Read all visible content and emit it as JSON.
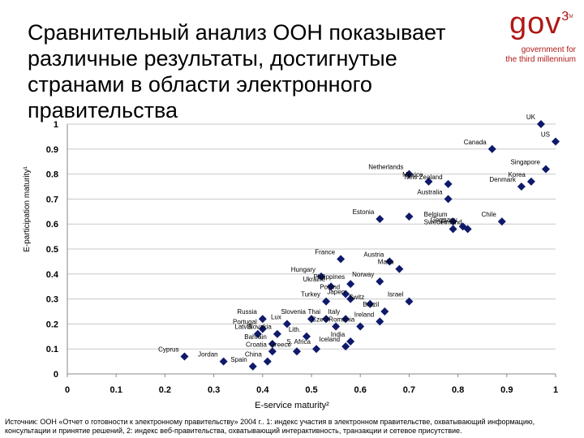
{
  "title": "Сравнительный анализ ООН показывает различные результаты, достигнутые странами в области электронного правительства",
  "logo": {
    "brand": "gov",
    "superscript": "3",
    "tm": "TM",
    "tagline_line1": "government for",
    "tagline_line2": "the third millennium",
    "color": "#b01818"
  },
  "footnote": "Источник: ООН «Отчет о готовности к электронному правительству» 2004 г.. 1: индекс участия в электронном правительстве, охватывающий информацию, консультации и принятие решений, 2: индекс веб-правительства, охватывающий интерактивность, транзакции и сетевое присутствие.",
  "chart_data": {
    "type": "scatter",
    "title": "",
    "xlabel": "E-service maturity²",
    "ylabel": "E-participation maturity¹",
    "xlim": [
      0,
      1
    ],
    "ylim": [
      0,
      1
    ],
    "xticks": [
      "0",
      "0.1",
      "0.2",
      "0.3",
      "0.4",
      "0.5",
      "0.6",
      "0.7",
      "0.8",
      "0.9",
      "1"
    ],
    "yticks": [
      "0",
      "0.1",
      "0.2",
      "0.3",
      "0.4",
      "0.5",
      "0.6",
      "0.7",
      "0.8",
      "0.9",
      "1"
    ],
    "grid": "horizontal",
    "marker_color": "#0f1a6b",
    "points": [
      {
        "label": "UK",
        "x": 0.97,
        "y": 1.0
      },
      {
        "label": "Canada",
        "x": 0.87,
        "y": 0.9
      },
      {
        "label": "US",
        "x": 1.0,
        "y": 0.93
      },
      {
        "label": "Netherlands",
        "x": 0.7,
        "y": 0.8
      },
      {
        "label": "Mexico",
        "x": 0.74,
        "y": 0.77
      },
      {
        "label": "Singapore",
        "x": 0.98,
        "y": 0.82
      },
      {
        "label": "Korea",
        "x": 0.95,
        "y": 0.77
      },
      {
        "label": "New Zealand",
        "x": 0.78,
        "y": 0.76
      },
      {
        "label": "Denmark",
        "x": 0.93,
        "y": 0.75
      },
      {
        "label": "Australia",
        "x": 0.78,
        "y": 0.7
      },
      {
        "label": "Estonia",
        "x": 0.64,
        "y": 0.62
      },
      {
        "label": "",
        "x": 0.7,
        "y": 0.63
      },
      {
        "label": "Belgium",
        "x": 0.79,
        "y": 0.61
      },
      {
        "label": "Germany",
        "x": 0.81,
        "y": 0.59
      },
      {
        "label": "Chile",
        "x": 0.89,
        "y": 0.61
      },
      {
        "label": "Finland",
        "x": 0.82,
        "y": 0.58
      },
      {
        "label": "Sweden",
        "x": 0.79,
        "y": 0.58
      },
      {
        "label": "France",
        "x": 0.56,
        "y": 0.46
      },
      {
        "label": "Austria",
        "x": 0.66,
        "y": 0.45
      },
      {
        "label": "Malta",
        "x": 0.68,
        "y": 0.42
      },
      {
        "label": "Hungary",
        "x": 0.52,
        "y": 0.39
      },
      {
        "label": "Philippines",
        "x": 0.58,
        "y": 0.36
      },
      {
        "label": "Norway",
        "x": 0.64,
        "y": 0.37
      },
      {
        "label": "Ukraine",
        "x": 0.54,
        "y": 0.35
      },
      {
        "label": "Poland",
        "x": 0.57,
        "y": 0.32
      },
      {
        "label": "Japen",
        "x": 0.58,
        "y": 0.3
      },
      {
        "label": "Turkey",
        "x": 0.53,
        "y": 0.29
      },
      {
        "label": "Switz",
        "x": 0.62,
        "y": 0.28
      },
      {
        "label": "Brazil",
        "x": 0.65,
        "y": 0.25
      },
      {
        "label": "Israel",
        "x": 0.7,
        "y": 0.29
      },
      {
        "label": "Russia",
        "x": 0.4,
        "y": 0.22
      },
      {
        "label": "Slovenia",
        "x": 0.5,
        "y": 0.22
      },
      {
        "label": "Thai",
        "x": 0.53,
        "y": 0.22
      },
      {
        "label": "Italy",
        "x": 0.57,
        "y": 0.22
      },
      {
        "label": "Ireland",
        "x": 0.64,
        "y": 0.21
      },
      {
        "label": "Portugal",
        "x": 0.4,
        "y": 0.18
      },
      {
        "label": "Lux",
        "x": 0.45,
        "y": 0.2
      },
      {
        "label": "Czech",
        "x": 0.55,
        "y": 0.19
      },
      {
        "label": "Romania",
        "x": 0.6,
        "y": 0.19
      },
      {
        "label": "Latvia",
        "x": 0.39,
        "y": 0.16
      },
      {
        "label": "Slovakia",
        "x": 0.43,
        "y": 0.16
      },
      {
        "label": "Bahrain",
        "x": 0.42,
        "y": 0.12
      },
      {
        "label": "India",
        "x": 0.58,
        "y": 0.13
      },
      {
        "label": "Lith.",
        "x": 0.49,
        "y": 0.15
      },
      {
        "label": "Croatia",
        "x": 0.42,
        "y": 0.09
      },
      {
        "label": "Greece",
        "x": 0.47,
        "y": 0.09
      },
      {
        "label": "S. Africa",
        "x": 0.51,
        "y": 0.1
      },
      {
        "label": "Iceland",
        "x": 0.57,
        "y": 0.11
      },
      {
        "label": "Cyprus",
        "x": 0.24,
        "y": 0.07
      },
      {
        "label": "Jordan",
        "x": 0.32,
        "y": 0.05
      },
      {
        "label": "Spain",
        "x": 0.38,
        "y": 0.03
      },
      {
        "label": "China",
        "x": 0.41,
        "y": 0.05
      }
    ]
  }
}
